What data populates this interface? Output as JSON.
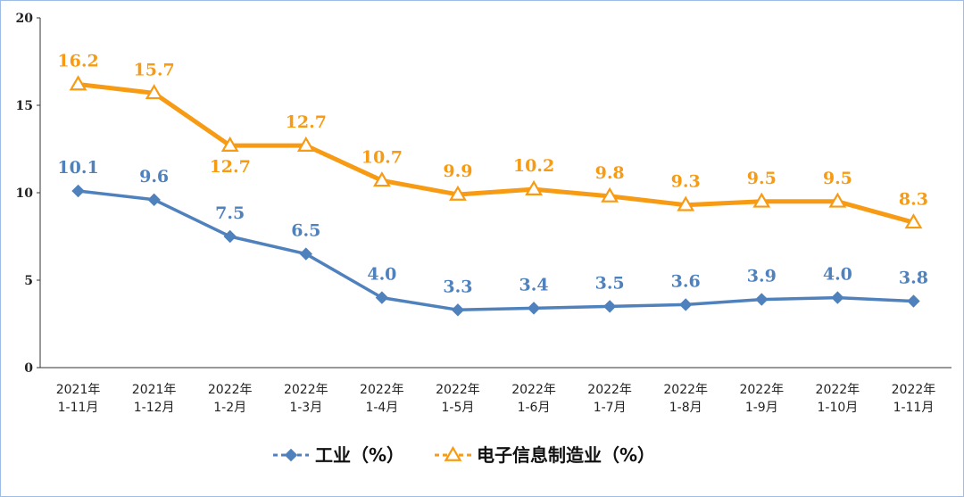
{
  "chart_data": {
    "type": "line",
    "categories": [
      [
        "2021年",
        "1-11月"
      ],
      [
        "2021年",
        "1-12月"
      ],
      [
        "2022年",
        "1-2月"
      ],
      [
        "2022年",
        "1-3月"
      ],
      [
        "2022年",
        "1-4月"
      ],
      [
        "2022年",
        "1-5月"
      ],
      [
        "2022年",
        "1-6月"
      ],
      [
        "2022年",
        "1-7月"
      ],
      [
        "2022年",
        "1-8月"
      ],
      [
        "2022年",
        "1-9月"
      ],
      [
        "2022年",
        "1-10月"
      ],
      [
        "2022年",
        "1-11月"
      ]
    ],
    "series": [
      {
        "name": "工业（%）",
        "color": "#4f81bd",
        "marker": "diamond",
        "values": [
          10.1,
          9.6,
          7.5,
          6.5,
          4.0,
          3.3,
          3.4,
          3.5,
          3.6,
          3.9,
          4.0,
          3.8
        ],
        "labels": [
          "10.1",
          "9.6",
          "7.5",
          "6.5",
          "4.0",
          "3.3",
          "3.4",
          "3.5",
          "3.6",
          "3.9",
          "4.0",
          "3.8"
        ]
      },
      {
        "name": "电子信息制造业（%）",
        "color": "#f79b14",
        "marker": "triangle",
        "values": [
          16.2,
          15.7,
          12.7,
          12.7,
          10.7,
          9.9,
          10.2,
          9.8,
          9.3,
          9.5,
          9.5,
          8.3
        ],
        "labels": [
          "16.2",
          "15.7",
          "12.7",
          "12.7",
          "10.7",
          "9.9",
          "10.2",
          "9.8",
          "9.3",
          "9.5",
          "9.5",
          "8.3"
        ]
      }
    ],
    "yticks": [
      "0",
      "5",
      "10",
      "15",
      "20"
    ],
    "ylim": [
      0,
      20
    ],
    "title": "",
    "xlabel": "",
    "ylabel": "",
    "grid": false,
    "legend_position": "bottom"
  }
}
